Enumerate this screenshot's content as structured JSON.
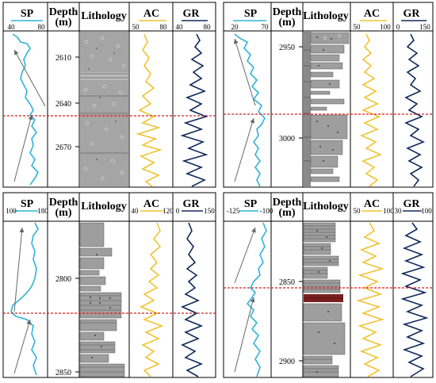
{
  "colors": {
    "sp": "#2fb3d8",
    "ac": "#f2c230",
    "gr": "#102a5c",
    "boundary": "#d81e1e",
    "lith_fill": "#9e9e9e",
    "lith_dark": "#6a6a6a",
    "red_band": "#7a1e1e"
  },
  "panels": [
    {
      "id": "a",
      "sp": {
        "label": "SP",
        "min": "40",
        "max": "80"
      },
      "depth": {
        "label": "Depth",
        "unit": "(m)",
        "ticks": [
          "2610",
          "2640",
          "2670"
        ],
        "tick_frac": [
          0.14,
          0.43,
          0.75
        ]
      },
      "lith": {
        "label": "Lithology",
        "style": "solid"
      },
      "ac": {
        "label": "AC",
        "min": "50",
        "max": "80"
      },
      "gr": {
        "label": "GR",
        "min": "40",
        "max": "80"
      },
      "boundary_frac": 0.565,
      "arrows": [
        [
          0.35,
          0.16,
          0.05,
          0.93
        ],
        [
          0.36,
          0.59,
          0.05,
          0.98
        ]
      ]
    },
    {
      "id": "b",
      "sp": {
        "label": "SP",
        "min": "20",
        "max": "70"
      },
      "depth": {
        "label": "Depth",
        "unit": "(m)",
        "ticks": [
          "2950",
          "3000"
        ],
        "tick_frac": [
          0.13,
          0.72
        ]
      },
      "lith": {
        "label": "Lithology",
        "style": "strips"
      },
      "ac": {
        "label": "AC",
        "min": "50",
        "max": "100"
      },
      "gr": {
        "label": "GR",
        "min": "0",
        "max": "150"
      },
      "boundary_frac": 0.555,
      "arrows": [
        [
          0.32,
          0.18,
          0.05,
          0.92
        ],
        [
          0.32,
          0.61,
          0.05,
          0.97
        ]
      ]
    },
    {
      "id": "c",
      "sp": {
        "label": "SP",
        "min": "100",
        "max": "180"
      },
      "depth": {
        "label": "Depth",
        "unit": "(m)",
        "ticks": [
          "2800",
          "2850"
        ],
        "tick_frac": [
          0.42,
          0.97
        ]
      },
      "lith": {
        "label": "Lithology",
        "style": "strips"
      },
      "ac": {
        "label": "AC",
        "min": "40",
        "max": "120"
      },
      "gr": {
        "label": "GR",
        "min": "0",
        "max": "150"
      },
      "boundary_frac": 0.71,
      "arrows": [
        [
          0.3,
          0.1,
          0.05,
          0.65
        ],
        [
          0.3,
          0.74,
          0.05,
          0.98
        ]
      ]
    },
    {
      "id": "d",
      "sp": {
        "label": "SP",
        "min": "-125",
        "max": "-100"
      },
      "depth": {
        "label": "Depth",
        "unit": "(m)",
        "ticks": [
          "2850",
          "2900"
        ],
        "tick_frac": [
          0.5,
          0.94
        ]
      },
      "lith": {
        "label": "Lithology",
        "style": "strips_red"
      },
      "ac": {
        "label": "AC",
        "min": "50",
        "max": "100"
      },
      "gr": {
        "label": "GR",
        "min": "30",
        "max": "100"
      },
      "boundary_frac": 0.53,
      "arrows": [
        [
          0.32,
          0.12,
          0.05,
          0.5
        ],
        [
          0.32,
          0.56,
          0.05,
          0.98
        ]
      ]
    }
  ]
}
